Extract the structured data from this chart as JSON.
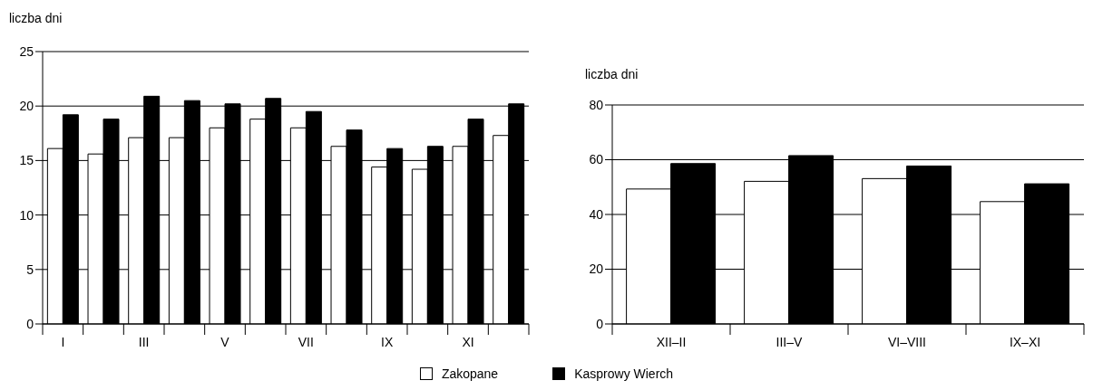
{
  "chart_data": [
    {
      "type": "bar",
      "ylabel": "liczba dni",
      "categories": [
        "I",
        null,
        "III",
        null,
        "V",
        null,
        "VII",
        null,
        "IX",
        null,
        "XI",
        null
      ],
      "ylim": [
        0,
        25
      ],
      "yticks": [
        0,
        5,
        10,
        15,
        20,
        25
      ],
      "grid": "y",
      "legend": false,
      "series": [
        {
          "color": "#ffffff",
          "values": [
            16.1,
            15.6,
            17.1,
            17.1,
            18.0,
            18.8,
            18.0,
            16.3,
            14.4,
            14.2,
            16.3,
            17.3
          ]
        },
        {
          "color": "#000000",
          "values": [
            19.2,
            18.8,
            20.9,
            20.5,
            20.2,
            20.7,
            19.5,
            17.8,
            16.1,
            16.3,
            18.8,
            20.2
          ]
        }
      ]
    },
    {
      "type": "bar",
      "ylabel": "liczba dni",
      "categories": [
        "XII–II",
        "III–V",
        "VI–VIII",
        "IX–XI"
      ],
      "ylim": [
        0,
        80
      ],
      "yticks": [
        0,
        20,
        40,
        60,
        80
      ],
      "grid": "y",
      "legend": "bottom",
      "series": [
        {
          "name": "Zakopane",
          "color": "#ffffff",
          "values": [
            49.3,
            52.1,
            53.1,
            44.7
          ]
        },
        {
          "name": "Kasprowy Wierch",
          "color": "#000000",
          "values": [
            58.6,
            61.5,
            57.7,
            51.2
          ]
        }
      ]
    }
  ]
}
